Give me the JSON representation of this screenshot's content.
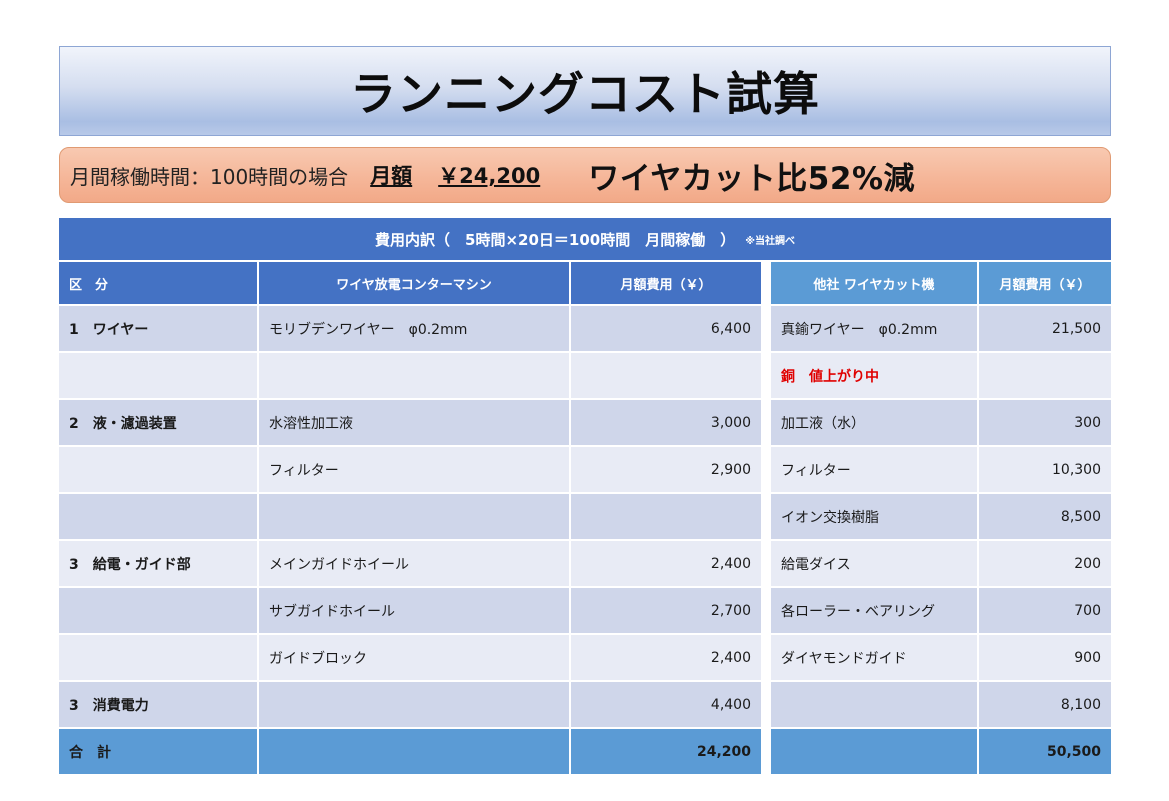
{
  "title": "ランニングコスト試算",
  "summary": {
    "condition": "月間稼働時間：100時間の場合",
    "amount_label": "月額",
    "amount_value": "￥24,200",
    "reduction": "ワイヤカット比52%減"
  },
  "table": {
    "caption": "費用内訳（　5時間×20日＝100時間　月間稼働　）",
    "caption_note": "※当社調べ",
    "headers": {
      "category": "区　分",
      "our_machine": "ワイヤ放電コンターマシン",
      "our_cost": "月額費用（￥）",
      "other_machine": "他社 ワイヤカット機",
      "other_cost": "月額費用（￥）"
    },
    "rows": [
      {
        "category": "1　ワイヤー",
        "our_item": "モリブデンワイヤー　φ0.2mm",
        "our_cost": "6,400",
        "other_item": "真鍮ワイヤー　φ0.2mm",
        "other_cost": "21,500"
      },
      {
        "category": "",
        "our_item": "",
        "our_cost": "",
        "other_item": "銅　値上がり中",
        "other_cost": ""
      },
      {
        "category": "2　液・濾過装置",
        "our_item": "水溶性加工液",
        "our_cost": "3,000",
        "other_item": "加工液（水）",
        "other_cost": "300"
      },
      {
        "category": "",
        "our_item": "フィルター",
        "our_cost": "2,900",
        "other_item": "フィルター",
        "other_cost": "10,300"
      },
      {
        "category": "",
        "our_item": "",
        "our_cost": "",
        "other_item": "イオン交換樹脂",
        "other_cost": "8,500"
      },
      {
        "category": "3　給電・ガイド部",
        "our_item": "メインガイドホイール",
        "our_cost": "2,400",
        "other_item": "給電ダイス",
        "other_cost": "200"
      },
      {
        "category": "",
        "our_item": "サブガイドホイール",
        "our_cost": "2,700",
        "other_item": "各ローラー・ベアリング",
        "other_cost": "700"
      },
      {
        "category": "",
        "our_item": "ガイドブロック",
        "our_cost": "2,400",
        "other_item": "ダイヤモンドガイド",
        "other_cost": "900"
      },
      {
        "category": "3　消費電力",
        "our_item": "",
        "our_cost": "4,400",
        "other_item": "",
        "other_cost": "8,100"
      }
    ],
    "total": {
      "category": "合　計",
      "our_cost": "24,200",
      "other_cost": "50,500"
    }
  },
  "colors": {
    "header_blue": "#4472c4",
    "header_light_blue": "#5b9bd5",
    "row_dark": "#cfd6ea",
    "row_light": "#e8ebf5",
    "summary_orange": "#f5b597",
    "warning_red": "#e00000"
  }
}
